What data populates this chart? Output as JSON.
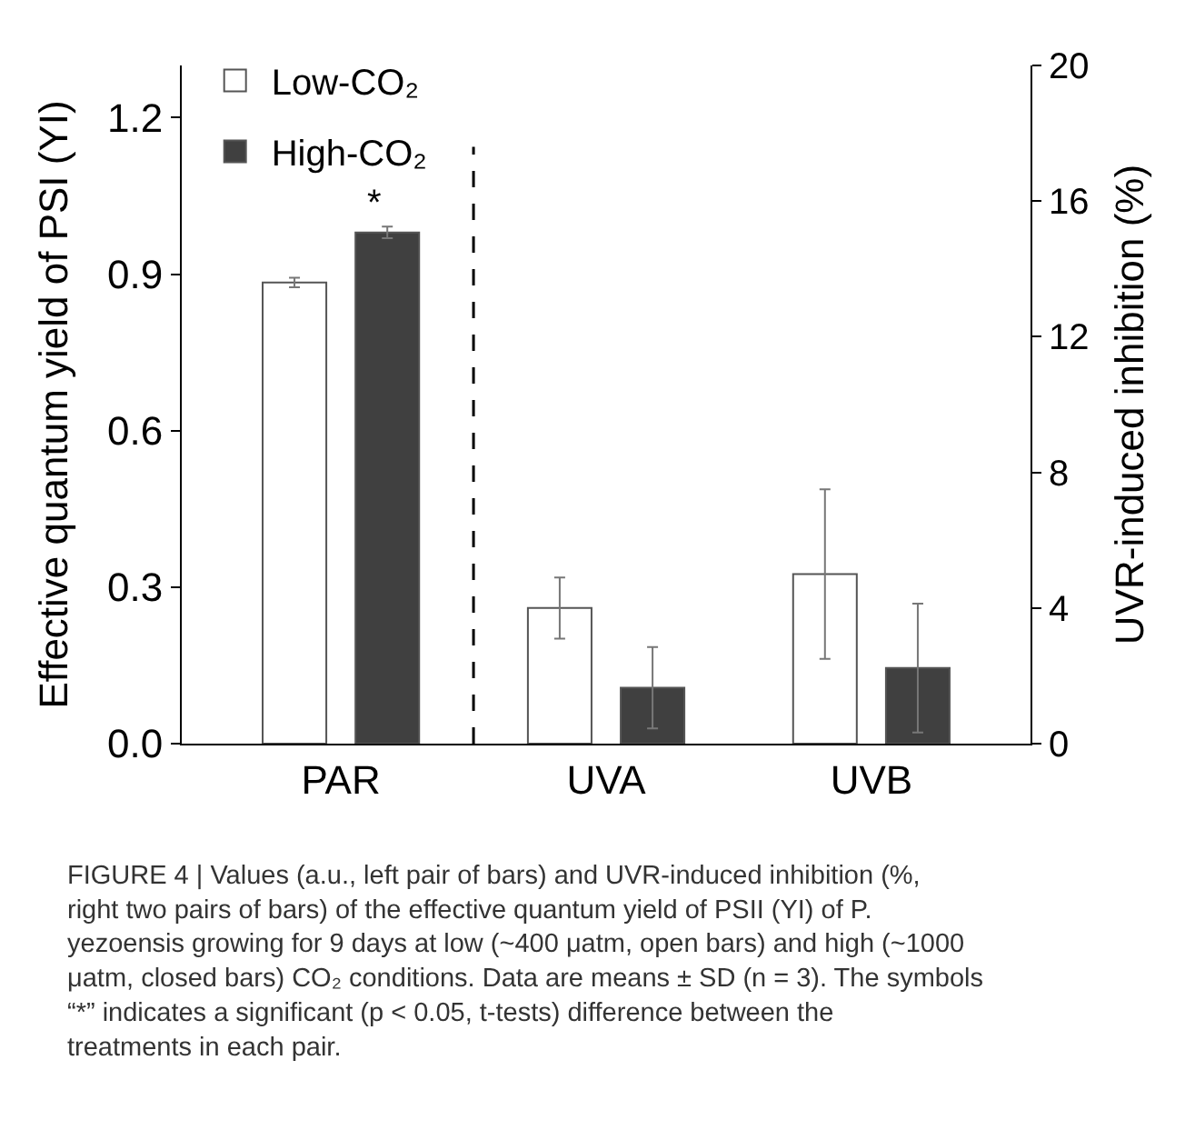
{
  "chart_data": {
    "type": "bar",
    "categories": [
      "PAR",
      "UVA",
      "UVB"
    ],
    "ylabel": "Effective quantum yield of PSI (YI)",
    "y2label": "UVR-induced inhibition (%)",
    "series": [
      {
        "name": "Low-CO₂",
        "color": "#ffffff",
        "values": [
          0.884,
          null,
          null
        ],
        "errors": [
          0.009,
          null,
          null
        ]
      },
      {
        "name": "High-CO₂",
        "color": "#404040",
        "values": [
          0.98,
          null,
          null
        ],
        "errors": [
          0.011,
          null,
          null
        ]
      },
      {
        "color": "#ffffff",
        "axis": "y2",
        "values": [
          null,
          4.0,
          5.0
        ],
        "errors": [
          null,
          0.9,
          2.5
        ]
      },
      {
        "color": "#404040",
        "axis": "y2",
        "values": [
          null,
          1.65,
          2.23
        ],
        "errors": [
          null,
          1.2,
          1.9
        ]
      }
    ],
    "ylim": [
      0,
      1.3
    ],
    "yticks": [
      {
        "value": 0,
        "label": "0.0"
      },
      {
        "value": 0.3,
        "label": "0.3"
      },
      {
        "value": 0.6,
        "label": "0.6"
      },
      {
        "value": 0.9,
        "label": "0.9"
      },
      {
        "value": 1.2,
        "label": "1.2"
      }
    ],
    "y2lim": [
      0,
      20
    ],
    "y2ticks": [
      0,
      4,
      8,
      12,
      16,
      20
    ],
    "annotations": [
      "*",
      "FIGURE 4 | Values (a.u., left pair of bars) and UVR-induced inhibition (%, right two pairs of bars) of the effective quantum yield of PSII (YI) of P. yezoensis growing for 9 days at low (~400 μatm, open bars) and high (~1000 μatm, closed bars) CO₂ conditions. Data are means ± SD (n = 3). The symbols “*” indicates a significant (p < 0.05, t-tests) difference between the treatments in each pair."
    ],
    "legend": "top left"
  }
}
